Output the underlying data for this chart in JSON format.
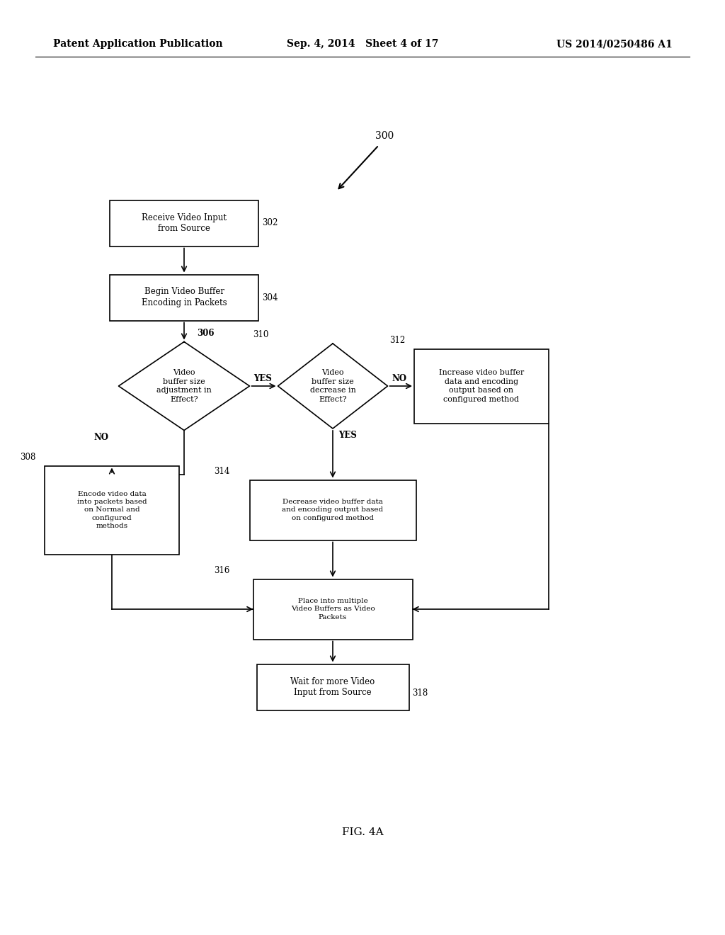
{
  "bg_color": "#ffffff",
  "header_left": "Patent Application Publication",
  "header_mid": "Sep. 4, 2014   Sheet 4 of 17",
  "header_right": "US 2014/0250486 A1",
  "fig_label": "FIG. 4A",
  "font_size_header": 10,
  "font_size_node": 8.5,
  "font_size_small": 7.5,
  "font_size_label": 8.5,
  "font_size_figlabel": 11
}
